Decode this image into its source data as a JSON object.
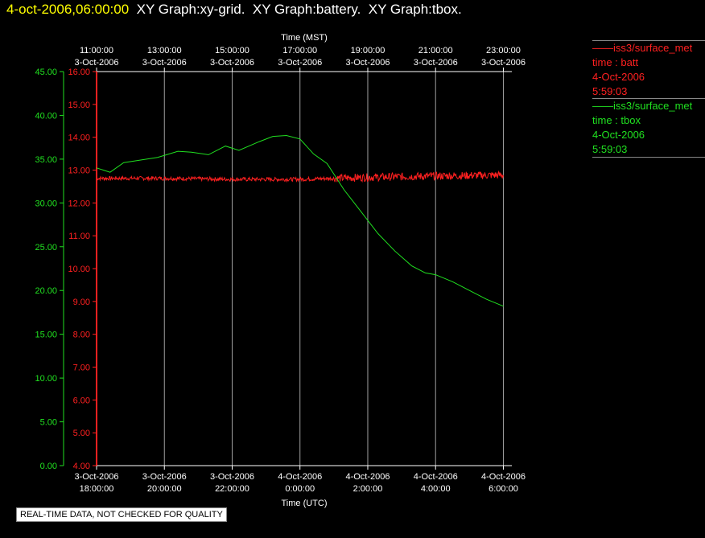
{
  "header": {
    "timestamp": "4-oct-2006,06:00:00",
    "graphs": "  XY Graph:xy-grid.  XY Graph:battery.  XY Graph:tbox."
  },
  "legend": [
    {
      "line1": "——iss3/surface_met",
      "line2": "time : batt",
      "line3": "4-Oct-2006",
      "line4": "5:59:03",
      "color": "#ff2020"
    },
    {
      "line1": "——iss3/surface_met",
      "line2": "time : tbox",
      "line3": "4-Oct-2006",
      "line4": "5:59:03",
      "color": "#20e020"
    }
  ],
  "disclaimer": "REAL-TIME DATA, NOT CHECKED FOR QUALITY",
  "chart_data": {
    "type": "line",
    "x_top_title": "Time (MST)",
    "x_bottom_title": "Time (UTC)",
    "x_ticks_utc_hours": [
      18,
      20,
      22,
      24,
      26,
      28,
      30
    ],
    "x_tick_labels_bottom": [
      [
        "3-Oct-2006",
        "18:00:00"
      ],
      [
        "3-Oct-2006",
        "20:00:00"
      ],
      [
        "3-Oct-2006",
        "22:00:00"
      ],
      [
        "4-Oct-2006",
        "0:00:00"
      ],
      [
        "4-Oct-2006",
        "2:00:00"
      ],
      [
        "4-Oct-2006",
        "4:00:00"
      ],
      [
        "4-Oct-2006",
        "6:00:00"
      ]
    ],
    "x_tick_labels_top": [
      [
        "11:00:00",
        "3-Oct-2006"
      ],
      [
        "13:00:00",
        "3-Oct-2006"
      ],
      [
        "15:00:00",
        "3-Oct-2006"
      ],
      [
        "17:00:00",
        "3-Oct-2006"
      ],
      [
        "19:00:00",
        "3-Oct-2006"
      ],
      [
        "21:00:00",
        "3-Oct-2006"
      ],
      [
        "23:00:00",
        "3-Oct-2006"
      ]
    ],
    "x_range_utc_hours": [
      18,
      30.25
    ],
    "y_left_outer": {
      "range": [
        0,
        45
      ],
      "ticks": [
        "0.00",
        "5.00",
        "10.00",
        "15.00",
        "20.00",
        "25.00",
        "30.00",
        "35.00",
        "40.00",
        "45.00"
      ],
      "color": "#20e020"
    },
    "y_left_inner": {
      "range": [
        4,
        16
      ],
      "ticks": [
        "4.00",
        "5.00",
        "6.00",
        "7.00",
        "8.00",
        "9.00",
        "10.00",
        "11.00",
        "12.00",
        "13.00",
        "14.00",
        "15.00",
        "16.00"
      ],
      "color": "#ff2020"
    },
    "series": [
      {
        "name": "iss3/surface_met time : batt",
        "axis": "inner",
        "color": "#ff2020",
        "x": [
          18.0,
          20.0,
          22.0,
          24.0,
          25.0,
          26.0,
          28.0,
          30.0
        ],
        "y": [
          12.75,
          12.75,
          12.72,
          12.72,
          12.75,
          12.78,
          12.82,
          12.85
        ],
        "noise": 0.06
      },
      {
        "name": "iss3/surface_met time : tbox",
        "axis": "outer",
        "color": "#20e020",
        "x": [
          18.0,
          18.4,
          18.8,
          19.3,
          19.8,
          20.4,
          20.8,
          21.3,
          21.8,
          22.2,
          22.8,
          23.2,
          23.6,
          24.0,
          24.4,
          24.8,
          25.3,
          25.8,
          26.3,
          26.8,
          27.3,
          27.7,
          28.0,
          28.5,
          29.0,
          29.5,
          30.0
        ],
        "y": [
          34.0,
          33.5,
          34.6,
          34.9,
          35.2,
          35.9,
          35.8,
          35.5,
          36.5,
          36.0,
          37.0,
          37.6,
          37.7,
          37.3,
          35.6,
          34.5,
          31.5,
          29.0,
          26.5,
          24.5,
          22.8,
          22.0,
          21.8,
          21.0,
          20.0,
          19.0,
          18.2
        ]
      }
    ]
  }
}
